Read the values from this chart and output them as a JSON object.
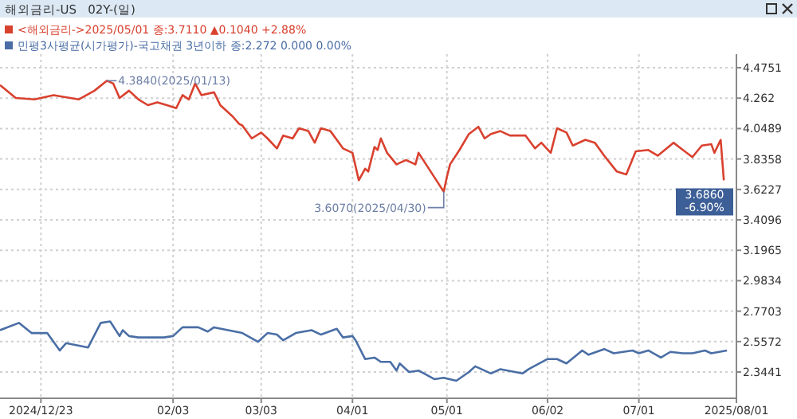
{
  "chart_data": {
    "type": "line",
    "title": "해외금리-US   02Y-(일)",
    "series": [
      {
        "name": "<해외금리->2025/05/01 종:3.7110 ▲0.1040 +2.88%",
        "color": "#d9412f",
        "x": [
          "2024-12-10",
          "2024-12-15",
          "2024-12-21",
          "2024-12-27",
          "2025-01-04",
          "2025-01-09",
          "2025-01-13",
          "2025-01-15",
          "2025-01-17",
          "2025-01-20",
          "2025-01-23",
          "2025-01-26",
          "2025-01-29",
          "2025-02-01",
          "2025-02-04",
          "2025-02-06",
          "2025-02-08",
          "2025-02-10",
          "2025-02-12",
          "2025-02-16",
          "2025-02-18",
          "2025-02-22",
          "2025-02-24",
          "2025-02-25",
          "2025-02-28",
          "2025-03-03",
          "2025-03-05",
          "2025-03-08",
          "2025-03-10",
          "2025-03-13",
          "2025-03-15",
          "2025-03-18",
          "2025-03-20",
          "2025-03-22",
          "2025-03-25",
          "2025-03-29",
          "2025-04-01",
          "2025-04-03",
          "2025-04-05",
          "2025-04-06",
          "2025-04-08",
          "2025-04-09",
          "2025-04-10",
          "2025-04-12",
          "2025-04-15",
          "2025-04-18",
          "2025-04-21",
          "2025-04-22",
          "2025-04-30",
          "2025-05-01",
          "2025-05-02",
          "2025-05-05",
          "2025-05-08",
          "2025-05-11",
          "2025-05-13",
          "2025-05-15",
          "2025-05-18",
          "2025-05-21",
          "2025-05-26",
          "2025-05-29",
          "2025-05-31",
          "2025-06-03",
          "2025-06-05",
          "2025-06-08",
          "2025-06-10",
          "2025-06-14",
          "2025-06-17",
          "2025-06-20",
          "2025-06-24",
          "2025-06-27",
          "2025-06-30",
          "2025-07-04",
          "2025-07-07",
          "2025-07-12",
          "2025-07-15",
          "2025-07-18",
          "2025-07-21",
          "2025-07-24",
          "2025-07-25",
          "2025-07-27",
          "2025-07-28"
        ],
        "values": [
          4.354,
          4.263,
          4.253,
          4.283,
          4.253,
          4.314,
          4.384,
          4.364,
          4.263,
          4.314,
          4.253,
          4.213,
          4.233,
          4.213,
          4.192,
          4.283,
          4.253,
          4.364,
          4.283,
          4.303,
          4.213,
          4.132,
          4.081,
          4.071,
          3.98,
          4.021,
          3.98,
          3.91,
          4.0,
          3.98,
          4.051,
          4.031,
          3.95,
          4.051,
          4.031,
          3.91,
          3.879,
          3.687,
          3.768,
          3.748,
          3.92,
          3.899,
          3.98,
          3.879,
          3.798,
          3.829,
          3.798,
          3.879,
          3.607,
          3.711,
          3.798,
          3.899,
          4.011,
          4.061,
          3.98,
          4.011,
          4.031,
          4.0,
          4.0,
          3.91,
          3.95,
          3.879,
          4.051,
          4.021,
          3.93,
          3.97,
          3.95,
          3.859,
          3.748,
          3.728,
          3.889,
          3.899,
          3.859,
          3.95,
          3.899,
          3.849,
          3.93,
          3.94,
          3.879,
          3.97,
          3.686
        ]
      },
      {
        "name": "민평3사평균(시가평가)-국고채권 3년이하 종:2.272 0.000 0.00%",
        "color": "#4a6ea5",
        "x": [
          "2024-12-10",
          "2024-12-16",
          "2024-12-20",
          "2024-12-25",
          "2024-12-29",
          "2024-12-31",
          "2025-01-07",
          "2025-01-11",
          "2025-01-14",
          "2025-01-17",
          "2025-01-18",
          "2025-01-20",
          "2025-01-23",
          "2025-01-31",
          "2025-02-03",
          "2025-02-06",
          "2025-02-11",
          "2025-02-14",
          "2025-02-16",
          "2025-02-25",
          "2025-03-02",
          "2025-03-05",
          "2025-03-08",
          "2025-03-10",
          "2025-03-14",
          "2025-03-19",
          "2025-03-22",
          "2025-03-27",
          "2025-03-29",
          "2025-04-01",
          "2025-04-02",
          "2025-04-05",
          "2025-04-08",
          "2025-04-10",
          "2025-04-13",
          "2025-04-15",
          "2025-04-16",
          "2025-04-19",
          "2025-04-22",
          "2025-04-27",
          "2025-04-30",
          "2025-05-04",
          "2025-05-08",
          "2025-05-10",
          "2025-05-15",
          "2025-05-18",
          "2025-05-25",
          "2025-05-27",
          "2025-06-02",
          "2025-06-05",
          "2025-06-08",
          "2025-06-13",
          "2025-06-15",
          "2025-06-20",
          "2025-06-23",
          "2025-06-29",
          "2025-07-01",
          "2025-07-04",
          "2025-07-08",
          "2025-07-11",
          "2025-07-15",
          "2025-07-18",
          "2025-07-22",
          "2025-07-24",
          "2025-07-29"
        ],
        "values": [
          2.637,
          2.688,
          2.617,
          2.617,
          2.495,
          2.546,
          2.516,
          2.688,
          2.698,
          2.596,
          2.637,
          2.596,
          2.586,
          2.586,
          2.596,
          2.657,
          2.657,
          2.627,
          2.657,
          2.617,
          2.556,
          2.617,
          2.606,
          2.566,
          2.617,
          2.637,
          2.606,
          2.647,
          2.586,
          2.596,
          2.566,
          2.435,
          2.445,
          2.415,
          2.415,
          2.354,
          2.404,
          2.344,
          2.354,
          2.294,
          2.304,
          2.283,
          2.344,
          2.384,
          2.334,
          2.364,
          2.334,
          2.364,
          2.435,
          2.435,
          2.404,
          2.495,
          2.465,
          2.505,
          2.475,
          2.495,
          2.475,
          2.495,
          2.445,
          2.485,
          2.475,
          2.475,
          2.495,
          2.475,
          2.495
        ]
      }
    ],
    "xlim": [
      "2024-12-10",
      "2025-08-01"
    ],
    "xticks": [
      {
        "value": "2024-12-23",
        "label": "2024/12/23"
      },
      {
        "value": "2025-02-03",
        "label": "02/03"
      },
      {
        "value": "2025-03-03",
        "label": "03/03"
      },
      {
        "value": "2025-04-01",
        "label": "04/01"
      },
      {
        "value": "2025-05-01",
        "label": "05/01"
      },
      {
        "value": "2025-06-02",
        "label": "06/02"
      },
      {
        "value": "2025-07-01",
        "label": "07/01"
      },
      {
        "value": "2025-08-01",
        "label": "2025/08/01"
      }
    ],
    "ylim": [
      2.16,
      4.57
    ],
    "yticks": [
      2.3441,
      2.5572,
      2.7703,
      2.9834,
      3.1965,
      3.4096,
      3.6227,
      3.8358,
      4.0489,
      4.262,
      4.4751
    ],
    "annotations": [
      {
        "text": "4.3840(2025/01/13)",
        "x": "2025-01-13",
        "y": 4.384
      },
      {
        "text": "3.6070(2025/04/30)",
        "x": "2025-04-30",
        "y": 3.607
      },
      {
        "text": "3.6860 -6.90%",
        "x": "2025-07-28",
        "y": 3.686
      }
    ],
    "grid": true,
    "legend": "top left",
    "marker": "none",
    "line_style": "solid"
  }
}
